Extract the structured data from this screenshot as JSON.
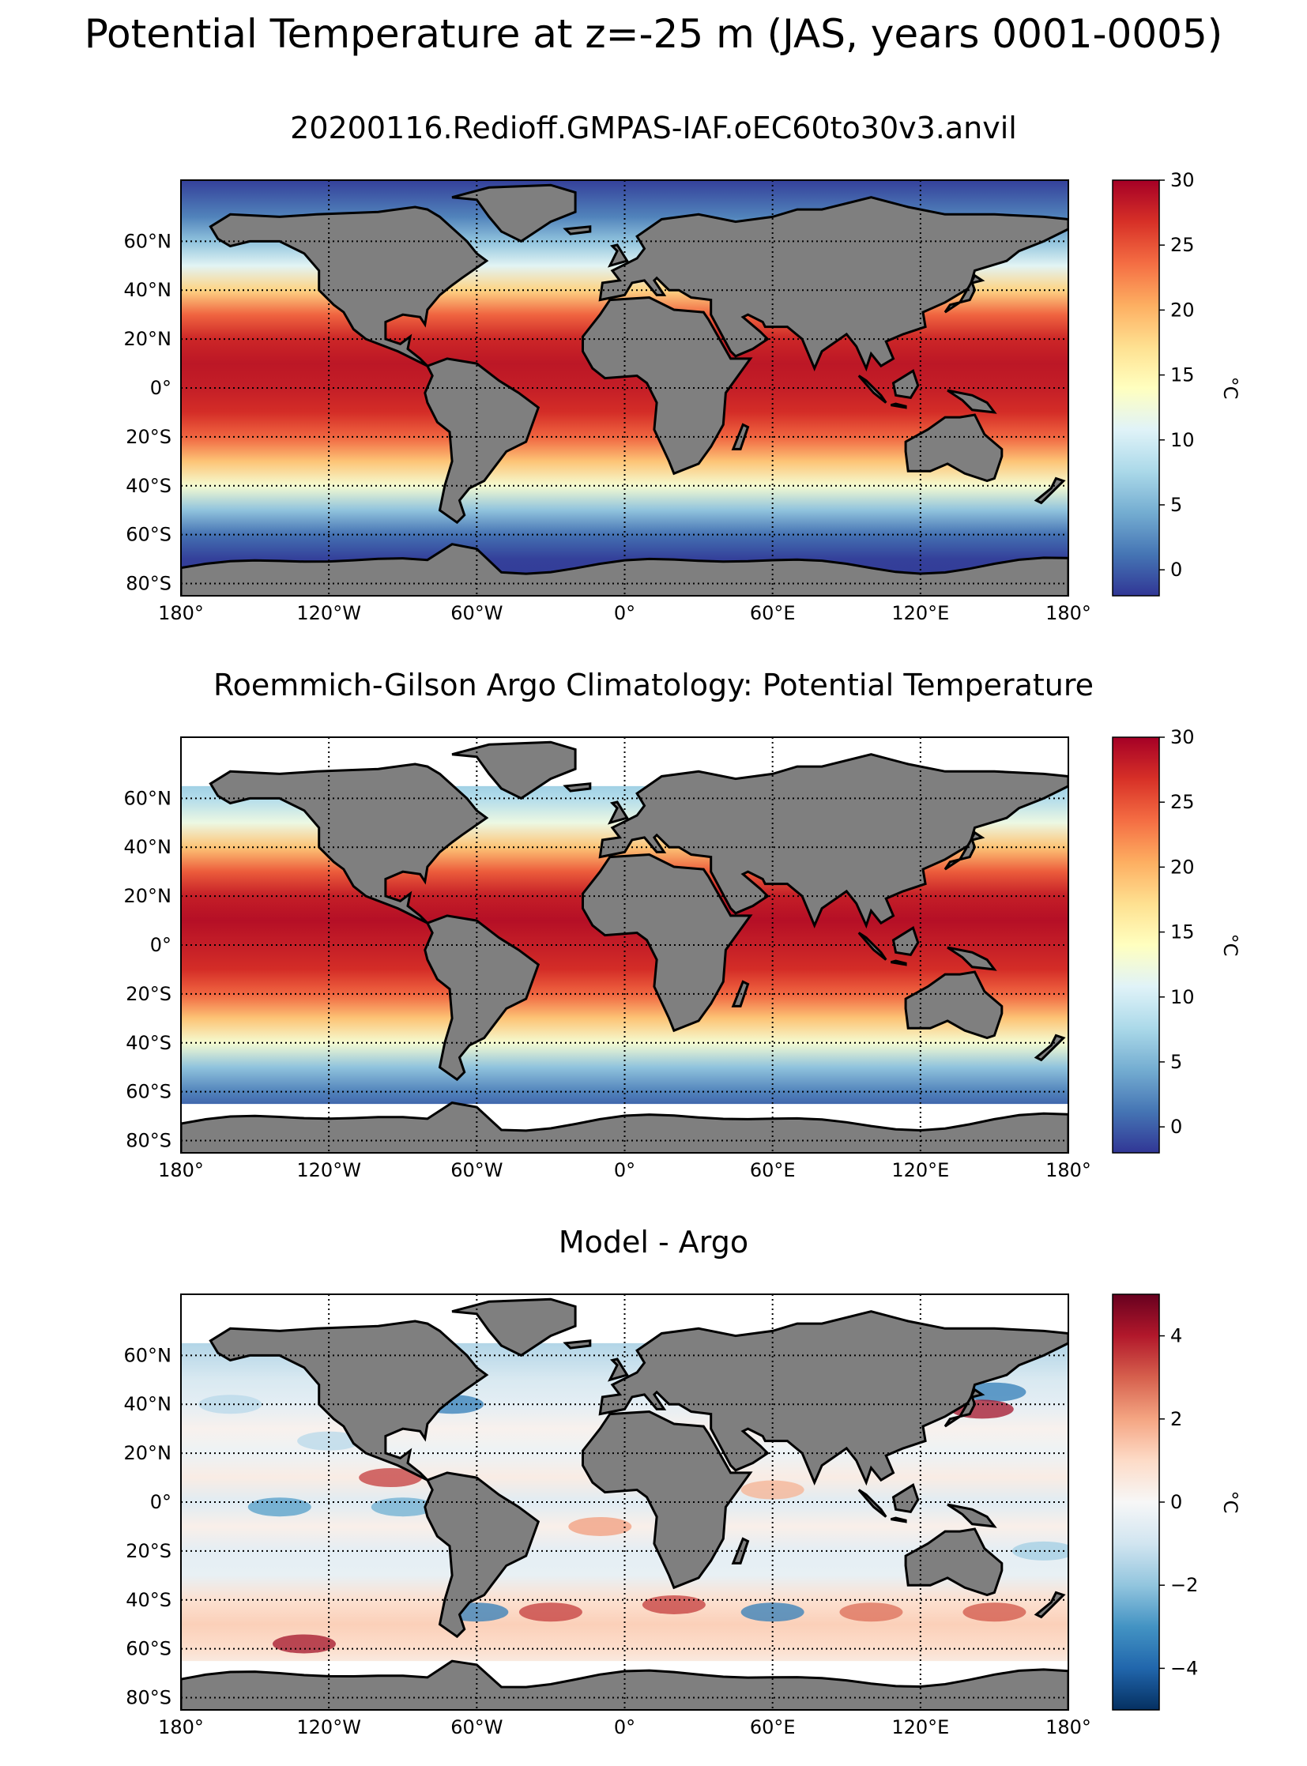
{
  "figure_title": "Potential Temperature at z=-25 m (JAS, years 0001-0005)",
  "chart_data": [
    {
      "type": "heatmap",
      "title": "20200116.Redioff.GMPAS-IAF.oEC60to30v3.anvil",
      "colormap": "RdYlBu_r",
      "colorbar": {
        "label": "°C",
        "range": [
          -2,
          30
        ],
        "ticks": [
          0,
          5,
          10,
          15,
          20,
          25,
          30
        ],
        "tick_labels": [
          "0",
          "5",
          "10",
          "15",
          "20",
          "25",
          "30"
        ]
      },
      "xaxis": {
        "range": [
          -180,
          180
        ],
        "ticks": [
          -180,
          -120,
          -60,
          0,
          60,
          120,
          180
        ],
        "tick_labels": [
          "180°",
          "120°W",
          "60°W",
          "0°",
          "60°E",
          "120°E",
          "180°"
        ]
      },
      "yaxis": {
        "range": [
          -85,
          85
        ],
        "ticks": [
          -80,
          -60,
          -40,
          -20,
          0,
          20,
          40,
          60
        ],
        "tick_labels": [
          "80°S",
          "60°S",
          "40°S",
          "20°S",
          "0°",
          "20°N",
          "40°N",
          "60°N"
        ]
      },
      "zonal_profile": {
        "lat": [
          85,
          70,
          60,
          50,
          40,
          30,
          20,
          10,
          0,
          -10,
          -20,
          -30,
          -40,
          -50,
          -60,
          -70,
          -80
        ],
        "value": [
          -1.5,
          2,
          6,
          11,
          18,
          24,
          27.5,
          28.5,
          28,
          27,
          24,
          19,
          13,
          6,
          1,
          -1.5,
          -1.8
        ]
      }
    },
    {
      "type": "heatmap",
      "title": "Roemmich-Gilson Argo Climatology: Potential Temperature",
      "colormap": "RdYlBu_r",
      "colorbar": {
        "label": "°C",
        "range": [
          -2,
          30
        ],
        "ticks": [
          0,
          5,
          10,
          15,
          20,
          25,
          30
        ],
        "tick_labels": [
          "0",
          "5",
          "10",
          "15",
          "20",
          "25",
          "30"
        ]
      },
      "xaxis": {
        "range": [
          -180,
          180
        ],
        "ticks": [
          -180,
          -120,
          -60,
          0,
          60,
          120,
          180
        ],
        "tick_labels": [
          "180°",
          "120°W",
          "60°W",
          "0°",
          "60°E",
          "120°E",
          "180°"
        ]
      },
      "yaxis": {
        "range": [
          -85,
          85
        ],
        "ticks": [
          -80,
          -60,
          -40,
          -20,
          0,
          20,
          40,
          60
        ],
        "tick_labels": [
          "80°S",
          "60°S",
          "40°S",
          "20°S",
          "0°",
          "20°N",
          "40°N",
          "60°N"
        ]
      },
      "data_lat_range": [
        -65,
        65
      ],
      "zonal_profile": {
        "lat": [
          65,
          60,
          50,
          40,
          30,
          20,
          10,
          0,
          -10,
          -20,
          -30,
          -40,
          -50,
          -60,
          -65
        ],
        "value": [
          7,
          8,
          12,
          19,
          24.5,
          28,
          29,
          28,
          27,
          24,
          19,
          13,
          6,
          2,
          0.5
        ]
      }
    },
    {
      "type": "heatmap",
      "title": "Model - Argo",
      "colormap": "RdBu_r",
      "colorbar": {
        "label": "°C",
        "range": [
          -5,
          5
        ],
        "ticks": [
          -4,
          -2,
          0,
          2,
          4
        ],
        "tick_labels": [
          "−4",
          "−2",
          "0",
          "2",
          "4"
        ]
      },
      "xaxis": {
        "range": [
          -180,
          180
        ],
        "ticks": [
          -180,
          -120,
          -60,
          0,
          60,
          120,
          180
        ],
        "tick_labels": [
          "180°",
          "120°W",
          "60°W",
          "0°",
          "60°E",
          "120°E",
          "180°"
        ]
      },
      "yaxis": {
        "range": [
          -85,
          85
        ],
        "ticks": [
          -80,
          -60,
          -40,
          -20,
          0,
          20,
          40,
          60
        ],
        "tick_labels": [
          "80°S",
          "60°S",
          "40°S",
          "20°S",
          "0°",
          "20°N",
          "40°N",
          "60°N"
        ]
      },
      "data_lat_range": [
        -65,
        65
      ],
      "zonal_profile": {
        "lat": [
          65,
          50,
          40,
          30,
          20,
          10,
          0,
          -10,
          -20,
          -30,
          -40,
          -50,
          -60,
          -65
        ],
        "value": [
          -1.5,
          -0.8,
          -0.5,
          0.2,
          -0.3,
          0.4,
          -0.6,
          0.3,
          -0.5,
          -0.4,
          0.8,
          1.2,
          0.9,
          0.5
        ]
      }
    }
  ]
}
